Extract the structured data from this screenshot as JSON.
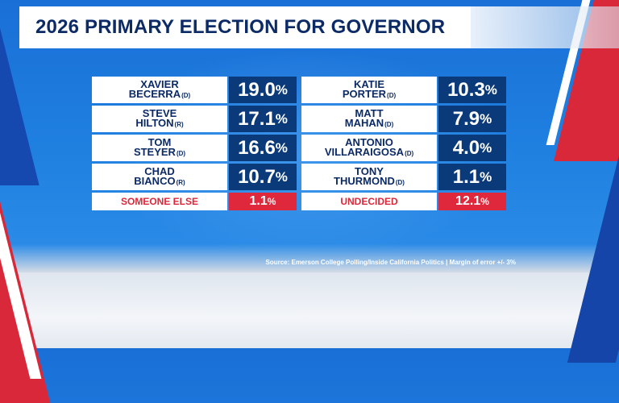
{
  "title": "2026 PRIMARY ELECTION FOR GOVERNOR",
  "colors": {
    "navy": "#0b2a66",
    "pct_bg": "#0b3a7a",
    "red": "#e0283c",
    "background": "#1f7fe0"
  },
  "left_candidates": [
    {
      "first": "XAVIER",
      "last": "BECERRA",
      "party": "(D)",
      "pct": "19.0",
      "sym": "%"
    },
    {
      "first": "STEVE",
      "last": "HILTON",
      "party": "(R)",
      "pct": "17.1",
      "sym": "%"
    },
    {
      "first": "TOM",
      "last": "STEYER",
      "party": "(D)",
      "pct": "16.6",
      "sym": "%"
    },
    {
      "first": "CHAD",
      "last": "BIANCO",
      "party": "(R)",
      "pct": "10.7",
      "sym": "%"
    }
  ],
  "right_candidates": [
    {
      "first": "KATIE",
      "last": "PORTER",
      "party": "(D)",
      "pct": "10.3",
      "sym": "%"
    },
    {
      "first": "MATT",
      "last": "MAHAN",
      "party": "(D)",
      "pct": "7.9",
      "sym": "%"
    },
    {
      "first": "ANTONIO",
      "last": "VILLARAIGOSA",
      "party": "(D)",
      "pct": "4.0",
      "sym": "%"
    },
    {
      "first": "TONY",
      "last": "THURMOND",
      "party": "(D)",
      "pct": "1.1",
      "sym": "%"
    }
  ],
  "someone_else": {
    "label": "SOMEONE ELSE",
    "pct": "1.1",
    "sym": "%"
  },
  "undecided": {
    "label": "UNDECIDED",
    "pct": "12.1",
    "sym": "%"
  },
  "source": "Source: Emerson College Polling/Inside California Politics | Margin of error +/- 3%"
}
